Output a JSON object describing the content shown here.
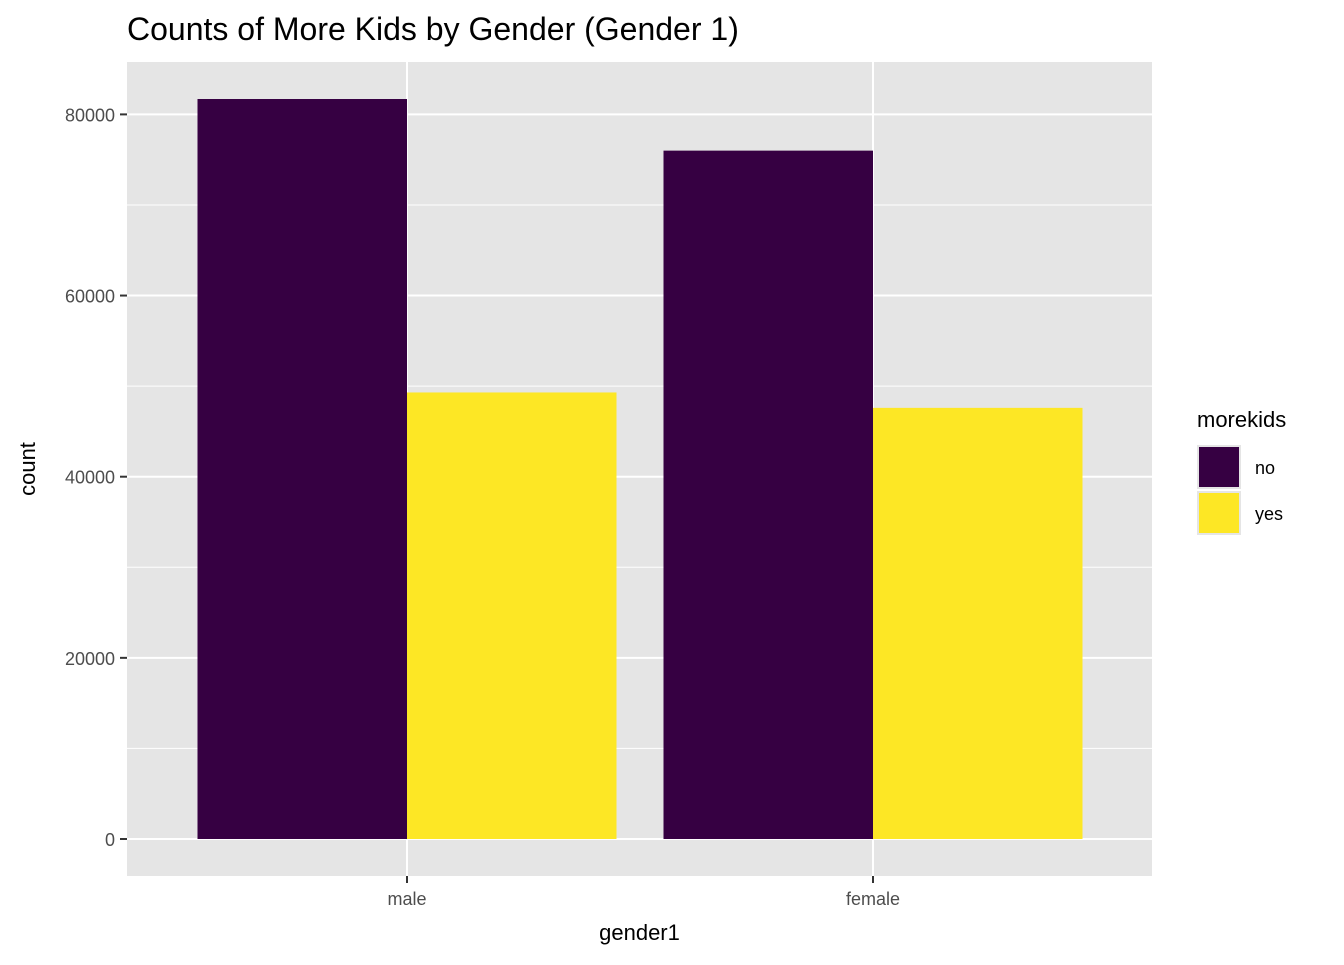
{
  "chart_data": {
    "type": "bar",
    "title": "Counts of More Kids by Gender (Gender 1)",
    "xlabel": "gender1",
    "ylabel": "count",
    "categories": [
      "male",
      "female"
    ],
    "series": [
      {
        "name": "no",
        "color": "#440154",
        "values": [
          81700,
          76000
        ]
      },
      {
        "name": "yes",
        "color": "#FDE725",
        "values": [
          49300,
          47600
        ]
      }
    ],
    "y_ticks": [
      0,
      20000,
      40000,
      60000,
      80000
    ],
    "y_tick_labels": [
      "0",
      "20000",
      "40000",
      "60000",
      "80000"
    ],
    "ylim": [
      -4085,
      85785
    ],
    "grid": true,
    "legend": {
      "title": "morekids",
      "placement": "right",
      "entries": [
        "no",
        "yes"
      ]
    }
  },
  "colors": {
    "panel_background": "#E5E5E5",
    "grid_line": "#FFFFFF",
    "axis_text": "#4D4D4D",
    "title_text": "#000000",
    "no": "#360042",
    "yes": "#FDE725"
  }
}
